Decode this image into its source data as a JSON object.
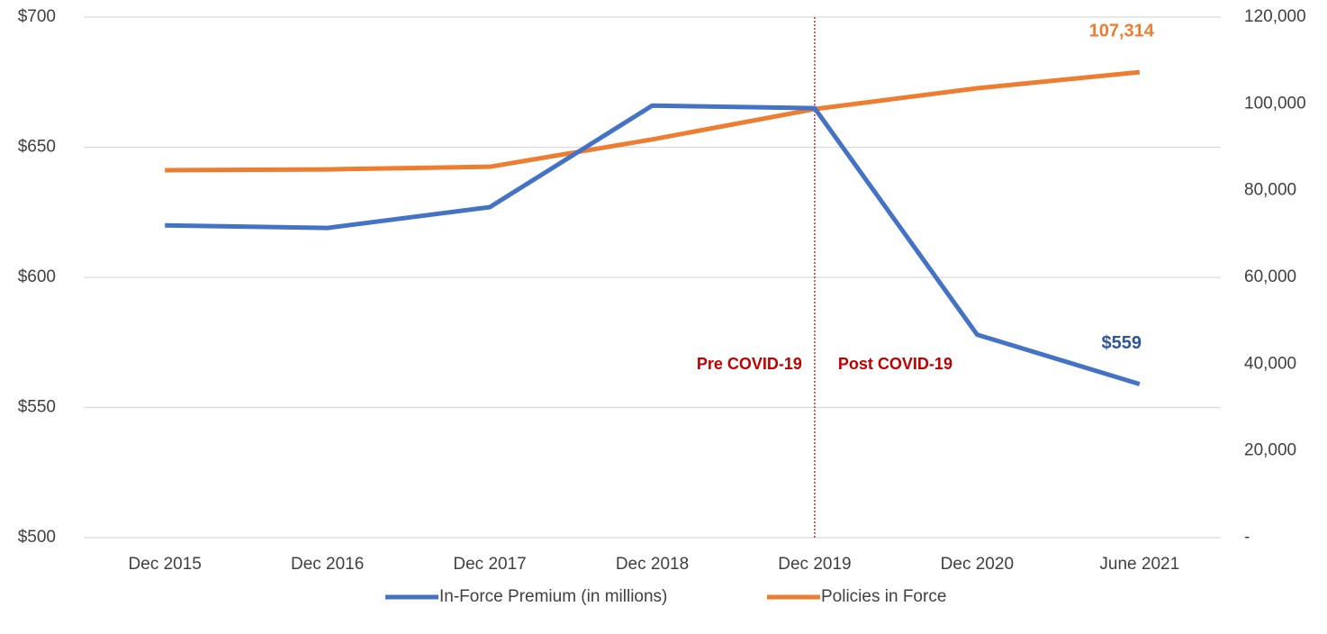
{
  "chart_data": {
    "type": "line",
    "categories": [
      "Dec 2015",
      "Dec 2016",
      "Dec 2017",
      "Dec 2018",
      "Dec 2019",
      "Dec 2020",
      "June 2021"
    ],
    "series": [
      {
        "name": "In-Force Premium (in millions)",
        "color": "#4472c4",
        "label_color": "#2f5597",
        "values": [
          620,
          619,
          627,
          666,
          665,
          578,
          559
        ],
        "value_labels": [
          null,
          null,
          null,
          null,
          null,
          null,
          "$559"
        ]
      },
      {
        "name": "Policies in Force",
        "color": "#ed7d31",
        "label_color": "#ed7d31",
        "axis": "y2",
        "values": [
          84700,
          84900,
          85500,
          91800,
          98800,
          103600,
          107314
        ],
        "value_labels": [
          null,
          null,
          null,
          null,
          null,
          null,
          "107,314"
        ]
      }
    ],
    "ylim": [
      500,
      700
    ],
    "yticks": [
      {
        "value": 500,
        "label": "$500"
      },
      {
        "value": 550,
        "label": "$550"
      },
      {
        "value": 600,
        "label": "$600"
      },
      {
        "value": 650,
        "label": "$650"
      },
      {
        "value": 700,
        "label": "$700"
      }
    ],
    "y2lim": [
      0,
      120000
    ],
    "y2ticks": [
      {
        "value": 0,
        "label": "-"
      },
      {
        "value": 20000,
        "label": "20,000"
      },
      {
        "value": 40000,
        "label": "40,000"
      },
      {
        "value": 60000,
        "label": "60,000"
      },
      {
        "value": 80000,
        "label": "80,000"
      },
      {
        "value": 100000,
        "label": "100,000"
      },
      {
        "value": 120000,
        "label": "120,000"
      }
    ],
    "grid": true,
    "legend": "bottom",
    "vline": {
      "at": "Dec 2019",
      "color": "#c00000"
    },
    "annotations": [
      "Pre COVID-19",
      "Post COVID-19"
    ]
  }
}
